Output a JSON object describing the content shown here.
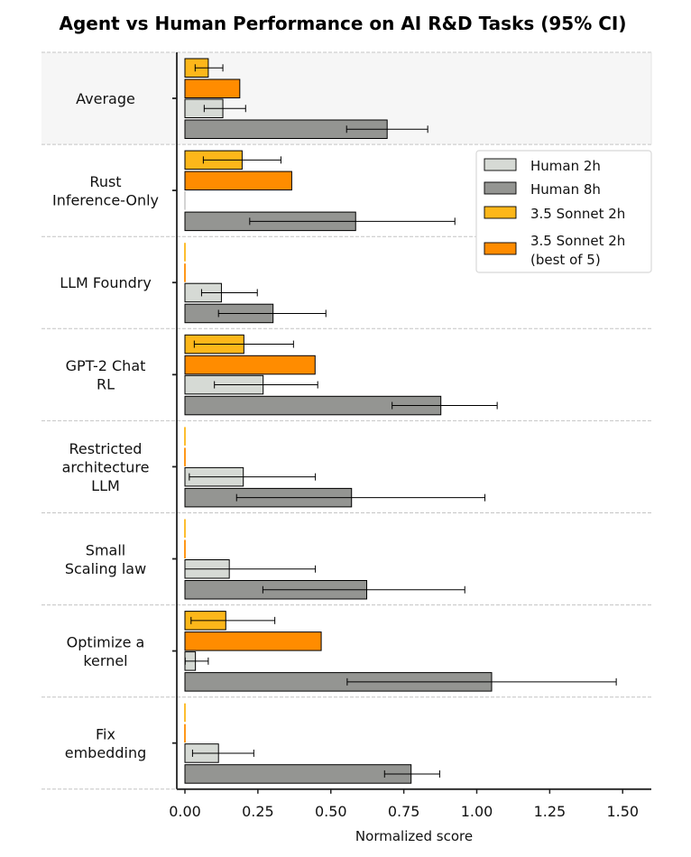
{
  "chart_data": {
    "type": "bar",
    "orientation": "horizontal",
    "title": "Agent vs Human Performance on AI R&D Tasks (95% CI)",
    "xlabel": "Normalized score",
    "ylabel": "",
    "xlim": [
      -0.03,
      1.6
    ],
    "xticks": [
      0.0,
      0.25,
      0.5,
      0.75,
      1.0,
      1.25,
      1.5
    ],
    "xtick_labels": [
      "0.00",
      "0.25",
      "0.50",
      "0.75",
      "1.00",
      "1.25",
      "1.50"
    ],
    "grid": false,
    "highlighted_category": "Average",
    "legend": {
      "placement": "top-right",
      "entries": [
        {
          "key": "human2h",
          "label": "Human 2h"
        },
        {
          "key": "human8h",
          "label": "Human 8h"
        },
        {
          "key": "sonnet2h",
          "label": "3.5 Sonnet 2h"
        },
        {
          "key": "sonnet_best5",
          "label": "3.5 Sonnet 2h\n(best of 5)"
        }
      ]
    },
    "categories": [
      "Average",
      "Rust\nInference-Only",
      "LLM Foundry",
      "GPT-2 Chat\nRL",
      "Restricted\narchitecture\nLLM",
      "Small\nScaling law",
      "Optimize a\nkernel",
      "Fix\nembedding"
    ],
    "series": [
      {
        "key": "sonnet2h",
        "name": "3.5 Sonnet 2h",
        "color": "#FDB71A",
        "values": [
          0.08,
          0.196,
          0.0,
          0.202,
          0.0,
          0.0,
          0.14,
          0.0
        ],
        "ci_low": [
          0.035,
          0.063,
          null,
          0.032,
          null,
          null,
          0.021,
          null
        ],
        "ci_high": [
          0.13,
          0.329,
          null,
          0.372,
          null,
          null,
          0.308,
          null
        ]
      },
      {
        "key": "sonnet_best5",
        "name": "3.5 Sonnet 2h (best of 5)",
        "color": "#FF8C00",
        "values": [
          0.188,
          0.366,
          0.0,
          0.446,
          0.0,
          0.0,
          0.467,
          0.0
        ],
        "ci_low": [
          null,
          null,
          null,
          null,
          null,
          null,
          null,
          null
        ],
        "ci_high": [
          null,
          null,
          null,
          null,
          null,
          null,
          null,
          null
        ]
      },
      {
        "key": "human2h",
        "name": "Human 2h",
        "color": "#D6DAD5",
        "values": [
          0.13,
          0.0,
          0.125,
          0.268,
          0.2,
          0.152,
          0.036,
          0.115
        ],
        "ci_low": [
          0.066,
          null,
          0.057,
          0.101,
          0.015,
          0.0,
          0.001,
          0.026
        ],
        "ci_high": [
          0.208,
          null,
          0.248,
          0.455,
          0.447,
          0.447,
          0.08,
          0.236
        ]
      },
      {
        "key": "human8h",
        "name": "Human 8h",
        "color": "#949592",
        "values": [
          0.693,
          0.585,
          0.302,
          0.877,
          0.571,
          0.623,
          1.051,
          0.775
        ],
        "ci_low": [
          0.554,
          0.222,
          0.115,
          0.71,
          0.177,
          0.267,
          0.556,
          0.684
        ],
        "ci_high": [
          0.832,
          0.925,
          0.483,
          1.07,
          1.028,
          0.959,
          1.478,
          0.873
        ]
      }
    ]
  }
}
